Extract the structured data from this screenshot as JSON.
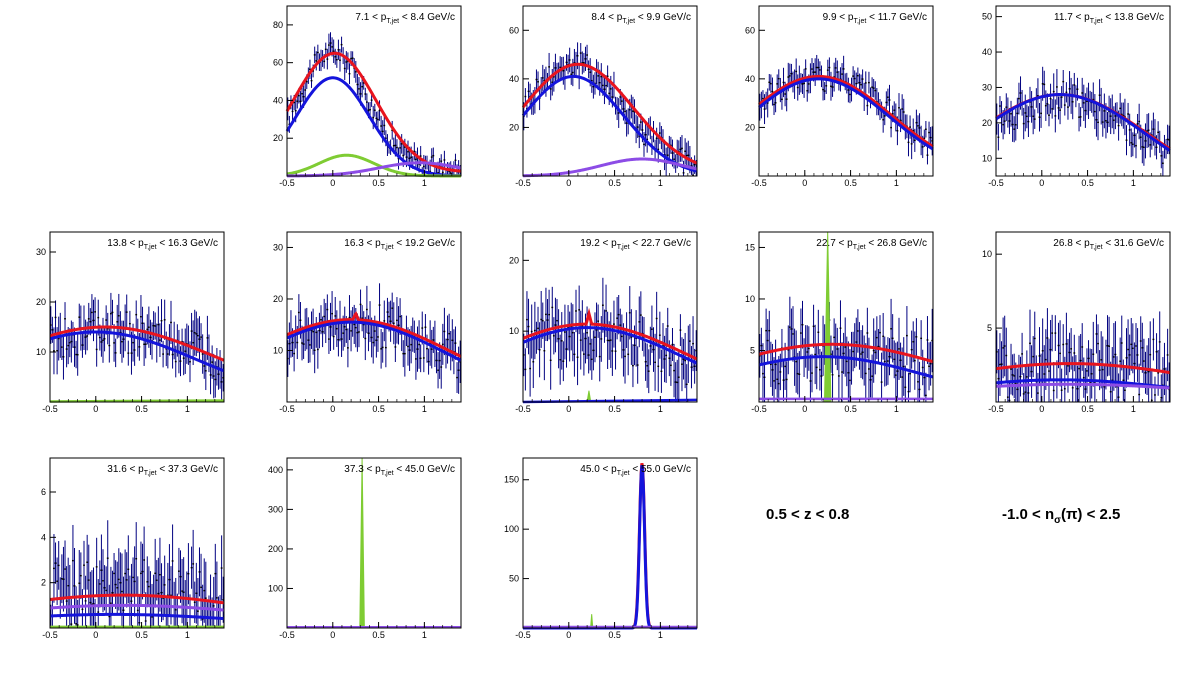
{
  "colors": {
    "data_points": "#000080",
    "total_fit": "#e8141e",
    "pion": "#1414dc",
    "kaon": "#7fcc33",
    "proton": "#8c4ce6",
    "frame": "#000000",
    "background": "#ffffff"
  },
  "legend": {
    "z_range": "0.5 < z < 0.8",
    "nsigma_prefix": "-1.0 < n",
    "nsigma_sub": "σ",
    "nsigma_suffix": "(π) < 2.5"
  },
  "chart_data": [
    {
      "type": "line",
      "title_lo": "7.1",
      "title_hi": "8.4",
      "unit": "GeV/c",
      "xlim": [
        -0.5,
        1.4
      ],
      "ylim": [
        0,
        90
      ],
      "yticks": [
        20,
        40,
        60,
        80
      ],
      "xticks": [
        -0.5,
        0,
        0.5,
        1
      ],
      "data": {
        "amp": 62,
        "mu": 0.0,
        "sigma": 0.38,
        "base": 4,
        "noise": 6
      },
      "series": [
        {
          "role": "total",
          "fn": "gauss",
          "amp": 63,
          "mu": 0.02,
          "sigma": 0.45,
          "base": 2
        },
        {
          "role": "pion",
          "fn": "gauss",
          "amp": 52,
          "mu": 0.0,
          "sigma": 0.4,
          "base": 0
        },
        {
          "role": "kaon",
          "fn": "gauss",
          "amp": 11,
          "mu": 0.15,
          "sigma": 0.3,
          "base": 0
        },
        {
          "role": "proton",
          "fn": "gauss",
          "amp": 7,
          "mu": 0.95,
          "sigma": 0.45,
          "base": 0
        }
      ]
    },
    {
      "type": "line",
      "title_lo": "8.4",
      "title_hi": "9.9",
      "unit": "GeV/c",
      "xlim": [
        -0.5,
        1.4
      ],
      "ylim": [
        0,
        70
      ],
      "yticks": [
        20,
        40,
        60
      ],
      "xticks": [
        -0.5,
        0,
        0.5,
        1
      ],
      "data": {
        "amp": 44,
        "mu": 0.05,
        "sigma": 0.55,
        "base": 2,
        "noise": 6
      },
      "series": [
        {
          "role": "total",
          "fn": "gauss",
          "amp": 45,
          "mu": 0.1,
          "sigma": 0.6,
          "base": 1
        },
        {
          "role": "pion",
          "fn": "gauss",
          "amp": 41,
          "mu": 0.05,
          "sigma": 0.55,
          "base": 0
        },
        {
          "role": "proton",
          "fn": "gauss",
          "amp": 7,
          "mu": 0.8,
          "sigma": 0.45,
          "base": 0
        }
      ]
    },
    {
      "type": "line",
      "title_lo": "9.9",
      "title_hi": "11.7",
      "unit": "GeV/c",
      "xlim": [
        -0.5,
        1.4
      ],
      "ylim": [
        0,
        70
      ],
      "yticks": [
        20,
        40,
        60
      ],
      "xticks": [
        -0.5,
        0,
        0.5,
        1
      ],
      "data": {
        "amp": 40,
        "mu": 0.15,
        "sigma": 0.8,
        "base": 1,
        "noise": 6
      },
      "series": [
        {
          "role": "total",
          "fn": "gauss",
          "amp": 41,
          "mu": 0.15,
          "sigma": 0.8,
          "base": 0
        },
        {
          "role": "pion",
          "fn": "gauss",
          "amp": 40,
          "mu": 0.15,
          "sigma": 0.78,
          "base": 0
        }
      ]
    },
    {
      "type": "line",
      "title_lo": "11.7",
      "title_hi": "13.8",
      "unit": "GeV/c",
      "xlim": [
        -0.5,
        1.4
      ],
      "ylim": [
        5,
        53
      ],
      "yticks": [
        10,
        20,
        30,
        40,
        50
      ],
      "xticks": [
        -0.5,
        0,
        0.5,
        1
      ],
      "data": {
        "amp": 27,
        "mu": 0.2,
        "sigma": 0.9,
        "base": 0,
        "noise": 5
      },
      "series": [
        {
          "role": "total",
          "fn": "gauss",
          "amp": 28,
          "mu": 0.2,
          "sigma": 0.95,
          "base": 0
        },
        {
          "role": "pion",
          "fn": "gauss",
          "amp": 28,
          "mu": 0.2,
          "sigma": 0.93,
          "base": 0
        }
      ]
    },
    {
      "type": "line",
      "title_lo": "13.8",
      "title_hi": "16.3",
      "unit": "GeV/c",
      "xlim": [
        -0.5,
        1.4
      ],
      "ylim": [
        0,
        34
      ],
      "yticks": [
        10,
        20,
        30
      ],
      "xticks": [
        -0.5,
        0,
        0.5,
        1
      ],
      "data": {
        "amp": 14,
        "mu": 0.1,
        "sigma": 1.2,
        "base": 0,
        "noise": 4.5
      },
      "series": [
        {
          "role": "total",
          "fn": "gauss",
          "amp": 15,
          "mu": 0.1,
          "sigma": 1.2,
          "base": 0
        },
        {
          "role": "pion",
          "fn": "gauss",
          "amp": 14,
          "mu": 0.0,
          "sigma": 1.1,
          "base": 0
        },
        {
          "role": "kaon_spike",
          "fn": "line",
          "y0": 0.1,
          "y1": 0.3
        }
      ]
    },
    {
      "type": "line",
      "title_lo": "16.3",
      "title_hi": "19.2",
      "unit": "GeV/c",
      "xlim": [
        -0.5,
        1.4
      ],
      "ylim": [
        0,
        33
      ],
      "yticks": [
        10,
        20,
        30
      ],
      "xticks": [
        -0.5,
        0,
        0.5,
        1
      ],
      "data": {
        "amp": 15,
        "mu": 0.2,
        "sigma": 1.1,
        "base": 0,
        "noise": 4.5
      },
      "series": [
        {
          "role": "total",
          "fn": "gauss",
          "amp": 16,
          "mu": 0.2,
          "sigma": 1.1,
          "base": 0,
          "spike_x": 0.25,
          "spike_h": 1.2
        },
        {
          "role": "pion",
          "fn": "gauss",
          "amp": 15.5,
          "mu": 0.2,
          "sigma": 1.05,
          "base": 0
        }
      ]
    },
    {
      "type": "line",
      "title_lo": "19.2",
      "title_hi": "22.7",
      "unit": "GeV/c",
      "xlim": [
        -0.5,
        1.4
      ],
      "ylim": [
        0,
        24
      ],
      "yticks": [
        10,
        20
      ],
      "xticks": [
        -0.5,
        0,
        0.5,
        1
      ],
      "data": {
        "amp": 10,
        "mu": 0.2,
        "sigma": 1.1,
        "base": 0,
        "noise": 4
      },
      "series": [
        {
          "role": "total",
          "fn": "gauss",
          "amp": 11,
          "mu": 0.2,
          "sigma": 1.1,
          "base": 0,
          "spike_x": 0.22,
          "spike_h": 1.5
        },
        {
          "role": "pion",
          "fn": "gauss",
          "amp": 10.5,
          "mu": 0.2,
          "sigma": 1.05,
          "base": 0
        },
        {
          "role": "kaon",
          "fn": "spike",
          "x0": 0.22,
          "h": 1.6,
          "w": 0.02
        },
        {
          "role": "pion_flat",
          "fn": "line",
          "y0": 0.0,
          "y1": 0.3
        }
      ]
    },
    {
      "type": "line",
      "title_lo": "22.7",
      "title_hi": "26.8",
      "unit": "GeV/c",
      "xlim": [
        -0.5,
        1.4
      ],
      "ylim": [
        0,
        16.5
      ],
      "yticks": [
        5,
        10,
        15
      ],
      "xticks": [
        -0.5,
        0,
        0.5,
        1
      ],
      "data": {
        "amp": 5,
        "mu": 0.2,
        "sigma": 1.2,
        "base": 0,
        "noise": 3
      },
      "series": [
        {
          "role": "kaon",
          "fn": "spike",
          "x0": 0.25,
          "h": 16.5,
          "w": 0.035
        },
        {
          "role": "total",
          "fn": "gauss",
          "amp": 5.6,
          "mu": 0.3,
          "sigma": 1.3,
          "base": 0
        },
        {
          "role": "pion",
          "fn": "gauss",
          "amp": 4.4,
          "mu": 0.2,
          "sigma": 1.1,
          "base": 0
        },
        {
          "role": "proton",
          "fn": "line",
          "y0": 0.3,
          "y1": 0.3
        }
      ]
    },
    {
      "type": "line",
      "title_lo": "26.8",
      "title_hi": "31.6",
      "unit": "GeV/c",
      "xlim": [
        -0.5,
        1.4
      ],
      "ylim": [
        0,
        11.5
      ],
      "yticks": [
        5,
        10
      ],
      "xticks": [
        -0.5,
        0,
        0.5,
        1
      ],
      "data": {
        "amp": 2.5,
        "mu": 0.3,
        "sigma": 1.5,
        "base": 0,
        "noise": 2.2
      },
      "series": [
        {
          "role": "total",
          "fn": "gauss",
          "amp": 2.6,
          "mu": 0.3,
          "sigma": 1.5,
          "base": 0
        },
        {
          "role": "pion",
          "fn": "gauss",
          "amp": 1.5,
          "mu": 0.2,
          "sigma": 1.3,
          "base": 0
        },
        {
          "role": "proton",
          "fn": "gauss",
          "amp": 1.2,
          "mu": 0.3,
          "sigma": 1.6,
          "base": 0
        }
      ]
    },
    {
      "type": "line",
      "title_lo": "31.6",
      "title_hi": "37.3",
      "unit": "GeV/c",
      "xlim": [
        -0.5,
        1.4
      ],
      "ylim": [
        0,
        7.5
      ],
      "yticks": [
        2,
        4,
        6
      ],
      "xticks": [
        -0.5,
        0,
        0.5,
        1
      ],
      "data": {
        "amp": 1.5,
        "mu": 0.3,
        "sigma": 1.5,
        "base": 0,
        "noise": 1.6
      },
      "series": [
        {
          "role": "total",
          "fn": "gauss",
          "amp": 1.45,
          "mu": 0.3,
          "sigma": 1.5,
          "base": 0
        },
        {
          "role": "proton",
          "fn": "gauss",
          "amp": 1.0,
          "mu": 0.3,
          "sigma": 1.6,
          "base": 0
        },
        {
          "role": "pion",
          "fn": "gauss",
          "amp": 0.6,
          "mu": 0.2,
          "sigma": 1.4,
          "base": 0
        },
        {
          "role": "kaon",
          "fn": "line",
          "y0": 0.05,
          "y1": 0.05
        }
      ]
    },
    {
      "type": "line",
      "title_lo": "37.3",
      "title_hi": "45.0",
      "unit": "GeV/c",
      "xlim": [
        -0.5,
        1.4
      ],
      "ylim": [
        0,
        430
      ],
      "yticks": [
        100,
        200,
        300,
        400
      ],
      "xticks": [
        -0.5,
        0,
        0.5,
        1
      ],
      "data": {
        "amp": 0,
        "mu": 0,
        "sigma": 1,
        "base": 0,
        "noise": 0
      },
      "series": [
        {
          "role": "kaon",
          "fn": "spike",
          "x0": 0.32,
          "h": 430,
          "w": 0.025
        },
        {
          "role": "proton",
          "fn": "line",
          "y0": 2,
          "y1": 2
        }
      ]
    },
    {
      "type": "line",
      "title_lo": "45.0",
      "title_hi": "55.0",
      "unit": "GeV/c",
      "xlim": [
        -0.5,
        1.4
      ],
      "ylim": [
        0,
        172
      ],
      "yticks": [
        50,
        100,
        150
      ],
      "xticks": [
        -0.5,
        0,
        0.5,
        1
      ],
      "data": {
        "amp": 0,
        "mu": 0,
        "sigma": 1,
        "base": 0,
        "noise": 0
      },
      "series": [
        {
          "role": "kaon",
          "fn": "spike",
          "x0": 0.25,
          "h": 14,
          "w": 0.012
        },
        {
          "role": "total",
          "fn": "gauss",
          "amp": 167,
          "mu": 0.8,
          "sigma": 0.028,
          "base": 0
        },
        {
          "role": "pion",
          "fn": "gauss",
          "amp": 165,
          "mu": 0.8,
          "sigma": 0.027,
          "base": 0
        },
        {
          "role": "proton",
          "fn": "line",
          "y0": 1,
          "y1": 1
        }
      ]
    }
  ]
}
